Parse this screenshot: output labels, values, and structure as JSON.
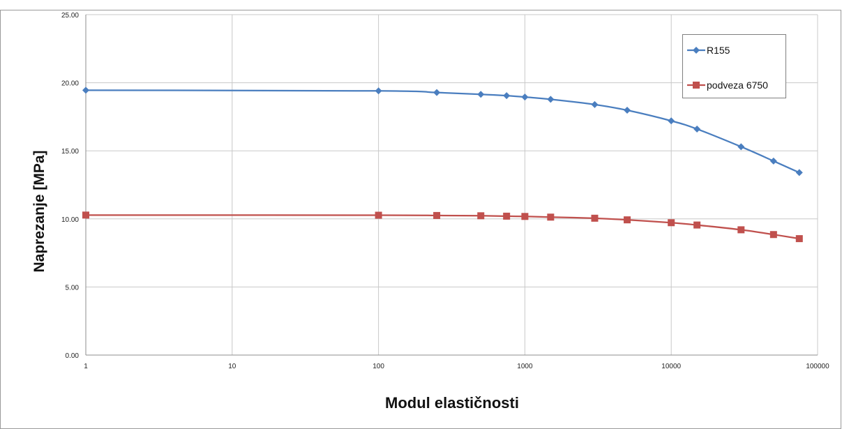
{
  "chart_data": {
    "type": "line",
    "xscale": "log",
    "xlabel": "Modul elastičnosti",
    "ylabel": "Naprezanje [MPa]",
    "xlim": [
      1,
      100000
    ],
    "ylim": [
      0,
      25
    ],
    "x_ticks": [
      "1",
      "10",
      "100",
      "1000",
      "10000",
      "100000"
    ],
    "y_ticks": [
      "0.00",
      "5.00",
      "10.00",
      "15.00",
      "20.00",
      "25.00"
    ],
    "grid": true,
    "legend_position": "top-right",
    "series": [
      {
        "name": "R155",
        "color": "#4a7ebf",
        "marker": "diamond",
        "x": [
          1,
          100,
          250,
          500,
          750,
          1000,
          1500,
          3000,
          5000,
          10000,
          15000,
          30000,
          50000,
          75000
        ],
        "y": [
          19.45,
          19.4,
          19.28,
          19.15,
          19.05,
          18.95,
          18.78,
          18.4,
          17.98,
          17.2,
          16.6,
          15.3,
          14.25,
          13.4
        ]
      },
      {
        "name": "podveza 6750",
        "color": "#c0504d",
        "marker": "square",
        "x": [
          1,
          100,
          250,
          500,
          750,
          1000,
          1500,
          3000,
          5000,
          10000,
          15000,
          30000,
          50000,
          75000
        ],
        "y": [
          10.28,
          10.27,
          10.25,
          10.23,
          10.2,
          10.18,
          10.13,
          10.05,
          9.93,
          9.72,
          9.55,
          9.2,
          8.85,
          8.55
        ]
      }
    ]
  }
}
